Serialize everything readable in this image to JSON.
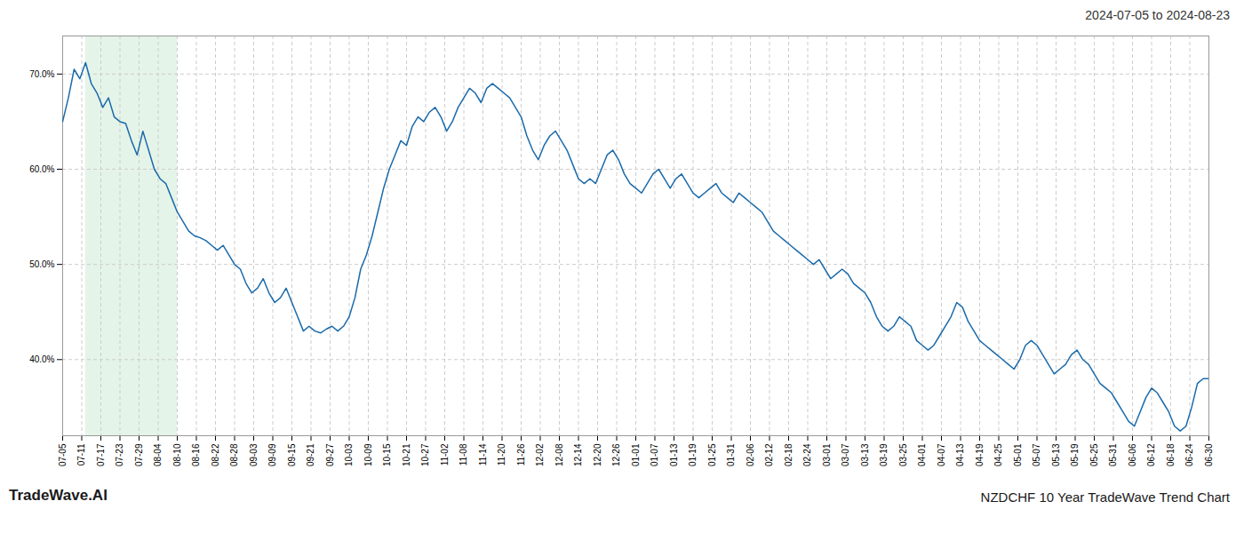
{
  "chart_data": {
    "type": "line",
    "title": "2024-07-05 to 2024-08-23",
    "footer_left": "TradeWave.AI",
    "footer_right": "NZDCHF 10 Year TradeWave Trend Chart",
    "color": "#1a6aaa",
    "grid": true,
    "highlight_span": [
      4,
      20
    ],
    "highlight_color": "#d4edda",
    "xlim": [
      0,
      200
    ],
    "xticks": [
      {
        "value": 0,
        "label": "07-05"
      },
      {
        "value": 3.333,
        "label": "07-11"
      },
      {
        "value": 6.667,
        "label": "07-17"
      },
      {
        "value": 10,
        "label": "07-23"
      },
      {
        "value": 13.333,
        "label": "07-29"
      },
      {
        "value": 16.667,
        "label": "08-04"
      },
      {
        "value": 20,
        "label": "08-10"
      },
      {
        "value": 23.333,
        "label": "08-16"
      },
      {
        "value": 26.667,
        "label": "08-22"
      },
      {
        "value": 30,
        "label": "08-28"
      },
      {
        "value": 33.333,
        "label": "09-03"
      },
      {
        "value": 36.667,
        "label": "09-09"
      },
      {
        "value": 40,
        "label": "09-15"
      },
      {
        "value": 43.333,
        "label": "09-21"
      },
      {
        "value": 46.667,
        "label": "09-27"
      },
      {
        "value": 50,
        "label": "10-03"
      },
      {
        "value": 53.333,
        "label": "10-09"
      },
      {
        "value": 56.667,
        "label": "10-15"
      },
      {
        "value": 60,
        "label": "10-21"
      },
      {
        "value": 63.333,
        "label": "10-27"
      },
      {
        "value": 66.667,
        "label": "11-02"
      },
      {
        "value": 70,
        "label": "11-08"
      },
      {
        "value": 73.333,
        "label": "11-14"
      },
      {
        "value": 76.667,
        "label": "11-20"
      },
      {
        "value": 80,
        "label": "11-26"
      },
      {
        "value": 83.333,
        "label": "12-02"
      },
      {
        "value": 86.667,
        "label": "12-08"
      },
      {
        "value": 90,
        "label": "12-14"
      },
      {
        "value": 93.333,
        "label": "12-20"
      },
      {
        "value": 96.667,
        "label": "12-26"
      },
      {
        "value": 100,
        "label": "01-01"
      },
      {
        "value": 103.333,
        "label": "01-07"
      },
      {
        "value": 106.667,
        "label": "01-13"
      },
      {
        "value": 110,
        "label": "01-19"
      },
      {
        "value": 113.333,
        "label": "01-25"
      },
      {
        "value": 116.667,
        "label": "01-31"
      },
      {
        "value": 120,
        "label": "02-06"
      },
      {
        "value": 123.333,
        "label": "02-12"
      },
      {
        "value": 126.667,
        "label": "02-18"
      },
      {
        "value": 130,
        "label": "02-24"
      },
      {
        "value": 133.333,
        "label": "03-01"
      },
      {
        "value": 136.667,
        "label": "03-07"
      },
      {
        "value": 140,
        "label": "03-13"
      },
      {
        "value": 143.333,
        "label": "03-19"
      },
      {
        "value": 146.667,
        "label": "03-25"
      },
      {
        "value": 150,
        "label": "04-01"
      },
      {
        "value": 153.333,
        "label": "04-07"
      },
      {
        "value": 156.667,
        "label": "04-13"
      },
      {
        "value": 160,
        "label": "04-19"
      },
      {
        "value": 163.333,
        "label": "04-25"
      },
      {
        "value": 166.667,
        "label": "05-01"
      },
      {
        "value": 170,
        "label": "05-07"
      },
      {
        "value": 173.333,
        "label": "05-13"
      },
      {
        "value": 176.667,
        "label": "05-19"
      },
      {
        "value": 180,
        "label": "05-25"
      },
      {
        "value": 183.333,
        "label": "05-31"
      },
      {
        "value": 186.667,
        "label": "06-06"
      },
      {
        "value": 190,
        "label": "06-12"
      },
      {
        "value": 193.333,
        "label": "06-18"
      },
      {
        "value": 196.667,
        "label": "06-24"
      },
      {
        "value": 200,
        "label": "06-30"
      }
    ],
    "ylim": [
      32,
      74
    ],
    "yticks": [
      {
        "value": 40.0,
        "label": "40.0%"
      },
      {
        "value": 50.0,
        "label": "50.0%"
      },
      {
        "value": 60.0,
        "label": "60.0%"
      },
      {
        "value": 70.0,
        "label": "70.0%"
      }
    ],
    "x": [
      0,
      1,
      2,
      3,
      4,
      5,
      6,
      7,
      8,
      9,
      10,
      11,
      12,
      13,
      14,
      15,
      16,
      17,
      18,
      19,
      20,
      21,
      22,
      23,
      24,
      25,
      26,
      27,
      28,
      29,
      30,
      31,
      32,
      33,
      34,
      35,
      36,
      37,
      38,
      39,
      40,
      41,
      42,
      43,
      44,
      45,
      46,
      47,
      48,
      49,
      50,
      51,
      52,
      53,
      54,
      55,
      56,
      57,
      58,
      59,
      60,
      61,
      62,
      63,
      64,
      65,
      66,
      67,
      68,
      69,
      70,
      71,
      72,
      73,
      74,
      75,
      76,
      77,
      78,
      79,
      80,
      81,
      82,
      83,
      84,
      85,
      86,
      87,
      88,
      89,
      90,
      91,
      92,
      93,
      94,
      95,
      96,
      97,
      98,
      99,
      100,
      101,
      102,
      103,
      104,
      105,
      106,
      107,
      108,
      109,
      110,
      111,
      112,
      113,
      114,
      115,
      116,
      117,
      118,
      119,
      120,
      121,
      122,
      123,
      124,
      125,
      126,
      127,
      128,
      129,
      130,
      131,
      132,
      133,
      134,
      135,
      136,
      137,
      138,
      139,
      140,
      141,
      142,
      143,
      144,
      145,
      146,
      147,
      148,
      149,
      150,
      151,
      152,
      153,
      154,
      155,
      156,
      157,
      158,
      159,
      160,
      161,
      162,
      163,
      164,
      165,
      166,
      167,
      168,
      169,
      170,
      171,
      172,
      173,
      174,
      175,
      176,
      177,
      178,
      179,
      180,
      181,
      182,
      183,
      184,
      185,
      186,
      187,
      188,
      189,
      190,
      191,
      192,
      193,
      194,
      195,
      196,
      197,
      198,
      199,
      200
    ],
    "values": [
      65.0,
      67.5,
      70.5,
      69.5,
      71.2,
      69.0,
      68.0,
      66.5,
      67.5,
      65.5,
      65.0,
      64.8,
      63.0,
      61.5,
      64.0,
      62.0,
      60.0,
      59.0,
      58.5,
      57.0,
      55.5,
      54.5,
      53.5,
      53.0,
      52.8,
      52.5,
      52.0,
      51.5,
      52.0,
      51.0,
      50.0,
      49.5,
      48.0,
      47.0,
      47.5,
      48.5,
      47.0,
      46.0,
      46.5,
      47.5,
      46.0,
      44.5,
      43.0,
      43.5,
      43.0,
      42.8,
      43.2,
      43.5,
      43.0,
      43.5,
      44.5,
      46.5,
      49.5,
      51.0,
      53.0,
      55.5,
      58.0,
      60.0,
      61.5,
      63.0,
      62.5,
      64.5,
      65.5,
      65.0,
      66.0,
      66.5,
      65.5,
      64.0,
      65.0,
      66.5,
      67.5,
      68.5,
      68.0,
      67.0,
      68.5,
      69.0,
      68.5,
      68.0,
      67.5,
      66.5,
      65.5,
      63.5,
      62.0,
      61.0,
      62.5,
      63.5,
      64.0,
      63.0,
      62.0,
      60.5,
      59.0,
      58.5,
      59.0,
      58.5,
      60.0,
      61.5,
      62.0,
      61.0,
      59.5,
      58.5,
      58.0,
      57.5,
      58.5,
      59.5,
      60.0,
      59.0,
      58.0,
      59.0,
      59.5,
      58.5,
      57.5,
      57.0,
      57.5,
      58.0,
      58.5,
      57.5,
      57.0,
      56.5,
      57.5,
      57.0,
      56.5,
      56.0,
      55.5,
      54.5,
      53.5,
      53.0,
      52.5,
      52.0,
      51.5,
      51.0,
      50.5,
      50.0,
      50.5,
      49.5,
      48.5,
      49.0,
      49.5,
      49.0,
      48.0,
      47.5,
      47.0,
      46.0,
      44.5,
      43.5,
      43.0,
      43.5,
      44.5,
      44.0,
      43.5,
      42.0,
      41.5,
      41.0,
      41.5,
      42.5,
      43.5,
      44.5,
      46.0,
      45.5,
      44.0,
      43.0,
      42.0,
      41.5,
      41.0,
      40.5,
      40.0,
      39.5,
      39.0,
      40.0,
      41.5,
      42.0,
      41.5,
      40.5,
      39.5,
      38.5,
      39.0,
      39.5,
      40.5,
      41.0,
      40.0,
      39.5,
      38.5,
      37.5,
      37.0,
      36.5,
      35.5,
      34.5,
      33.5,
      33.0,
      34.5,
      36.0,
      37.0,
      36.5,
      35.5,
      34.5,
      33.0,
      32.5,
      33.0,
      35.0,
      37.5,
      38.0,
      38.0
    ]
  }
}
